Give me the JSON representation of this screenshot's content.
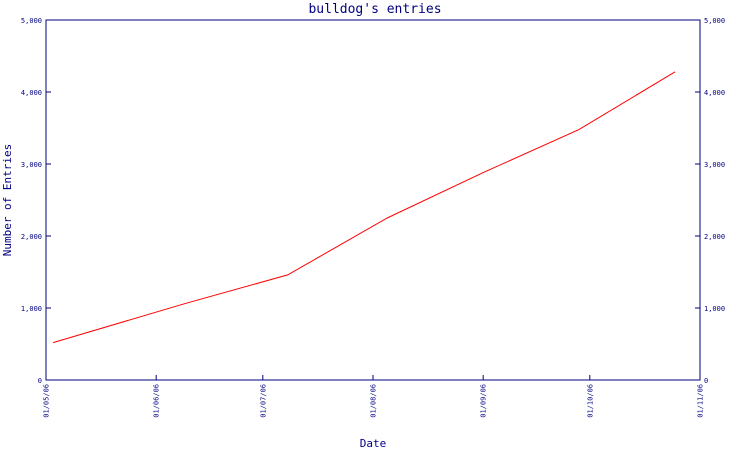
{
  "chart_data": {
    "type": "line",
    "title": "bulldog's entries",
    "xlabel": "Date",
    "ylabel": "Number of Entries",
    "x_tick_labels": [
      "01/05/06",
      "01/06/06",
      "01/07/06",
      "01/08/06",
      "01/09/06",
      "01/10/06",
      "01/11/06"
    ],
    "y_tick_labels": [
      "0",
      "1,000",
      "2,000",
      "3,000",
      "4,000",
      "5,000"
    ],
    "y_ticks": [
      0,
      1000,
      2000,
      3000,
      4000,
      5000
    ],
    "ylim": [
      0,
      5000
    ],
    "xlim": [
      "2006-05-01",
      "2006-11-01"
    ],
    "grid": false,
    "secondary_y_axis": true,
    "series": [
      {
        "color": "#ff0000",
        "x": [
          "2006-05-03",
          "2006-06-09",
          "2006-07-08",
          "2006-08-05",
          "2006-09-01",
          "2006-09-28",
          "2006-10-25"
        ],
        "y": [
          520,
          1060,
          1460,
          2250,
          2880,
          3480,
          4280
        ]
      }
    ],
    "colors": {
      "axis": "#000080",
      "line": "#ff0000",
      "background": "#ffffff"
    }
  }
}
